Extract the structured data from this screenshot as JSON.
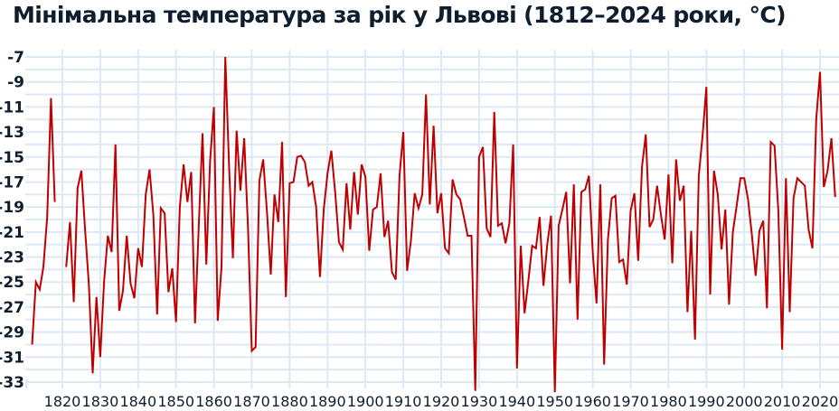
{
  "title": "Мінімальна температура за рік у Львові (1812–2024 роки, °C)",
  "colors": {
    "line": "#c00000",
    "grid": "#dde8f5",
    "text": "#0f1e2e"
  },
  "chart_data": {
    "type": "line",
    "title": "Мінімальна температура за рік у Львові (1812–2024 роки, °C)",
    "xlabel": "",
    "ylabel": "",
    "ylim": [
      -34,
      -7
    ],
    "xlim": [
      1812,
      2024
    ],
    "grid": true,
    "legend": null,
    "y_ticks": [
      -7,
      -9,
      -11,
      -13,
      -15,
      -17,
      -19,
      -21,
      -23,
      -25,
      -27,
      -29,
      -31,
      -33
    ],
    "x_ticks": [
      1820,
      1830,
      1840,
      1850,
      1860,
      1870,
      1880,
      1890,
      1900,
      1910,
      1920,
      1930,
      1940,
      1950,
      1960,
      1970,
      1980,
      1990,
      2000,
      2010,
      2020
    ],
    "series": [
      {
        "name": "Мінімальна температура",
        "start_year": 1812,
        "values": [
          -30,
          -25,
          -25.6,
          -23.8,
          -19.8,
          -10.3,
          -18.6,
          null,
          null,
          -23.8,
          -20.2,
          -26.6,
          -17.5,
          -16.1,
          -20.8,
          -25.2,
          -32.3,
          -26.2,
          -31,
          -25,
          -21.3,
          -22.6,
          -14,
          -27.3,
          -25.7,
          -21.3,
          -25.1,
          -26.3,
          -22.3,
          -23.8,
          -18,
          -16,
          -19.6,
          -27.6,
          -19.1,
          -19.5,
          -25.8,
          -23.9,
          -28.2,
          -19,
          -15.6,
          -18.6,
          -16.2,
          -28.3,
          -20.6,
          -13.1,
          -23.6,
          -15.3,
          -11,
          -28.1,
          -23.8,
          -7,
          -15.8,
          -23.1,
          -12.9,
          -17.7,
          -13.5,
          -20.6,
          -30.5,
          -30.2,
          -16.9,
          -15.2,
          -19.4,
          -24.4,
          -18,
          -20.2,
          -13.8,
          -26.2,
          -17.1,
          -17,
          -15,
          -14.9,
          -15.4,
          -17.3,
          -17,
          -19,
          -24.6,
          -19.2,
          -16.3,
          -14.5,
          -17.8,
          -21.8,
          -22.4,
          -17.1,
          -20.8,
          -16.2,
          -19.6,
          -15.6,
          -16.6,
          -22.5,
          -19.2,
          -19,
          -16.3,
          -21.4,
          -20.1,
          -24.2,
          -24.8,
          -16.5,
          -13,
          -24.1,
          -21.7,
          -17.9,
          -19.1,
          -18,
          -10,
          -18.8,
          -12.5,
          -19.5,
          -17.9,
          -22.3,
          -22.7,
          -16.8,
          -18,
          -18.4,
          -19.8,
          -21.3,
          -21.3,
          -33.7,
          -15,
          -14.2,
          -20.7,
          -21.4,
          -11.4,
          -20.5,
          -20.3,
          -21.9,
          -20.3,
          -14,
          -31.9,
          -22.1,
          -27.5,
          -24.9,
          -22.1,
          -22.3,
          -19.8,
          -25.3,
          -22,
          -19.7,
          -33.8,
          -20.5,
          -19.2,
          -17.8,
          -25.1,
          -17.2,
          -28,
          -17.8,
          -17.6,
          -16.5,
          -22.6,
          -26.7,
          -17.2,
          -31.6,
          -21.6,
          -18.3,
          -18.1,
          -23.4,
          -23.2,
          -25.2,
          -19.3,
          -17.9,
          -23.3,
          -15.8,
          -13.2,
          -20.6,
          -20,
          -17.3,
          -19.6,
          -21.6,
          -16.4,
          -23.5,
          -15.2,
          -18.5,
          -17.3,
          -27.4,
          -20.9,
          -29.6,
          -16.5,
          -13.3,
          -9.4,
          -26,
          -16.1,
          -18,
          -22.4,
          -19.2,
          -26.8,
          -21,
          -18.9,
          -16.7,
          -16.7,
          -18.4,
          -21.2,
          -24.5,
          -20.9,
          -20.1,
          -27.1,
          -13.8,
          -14.1,
          -19.3,
          -30.4,
          -16.7,
          -27.4,
          -18.3,
          -16.7,
          -17,
          -17.3,
          -20.8,
          -22.3,
          -12,
          -8.2,
          -17.4,
          -16.1,
          -13.5,
          -18.2
        ]
      }
    ]
  }
}
